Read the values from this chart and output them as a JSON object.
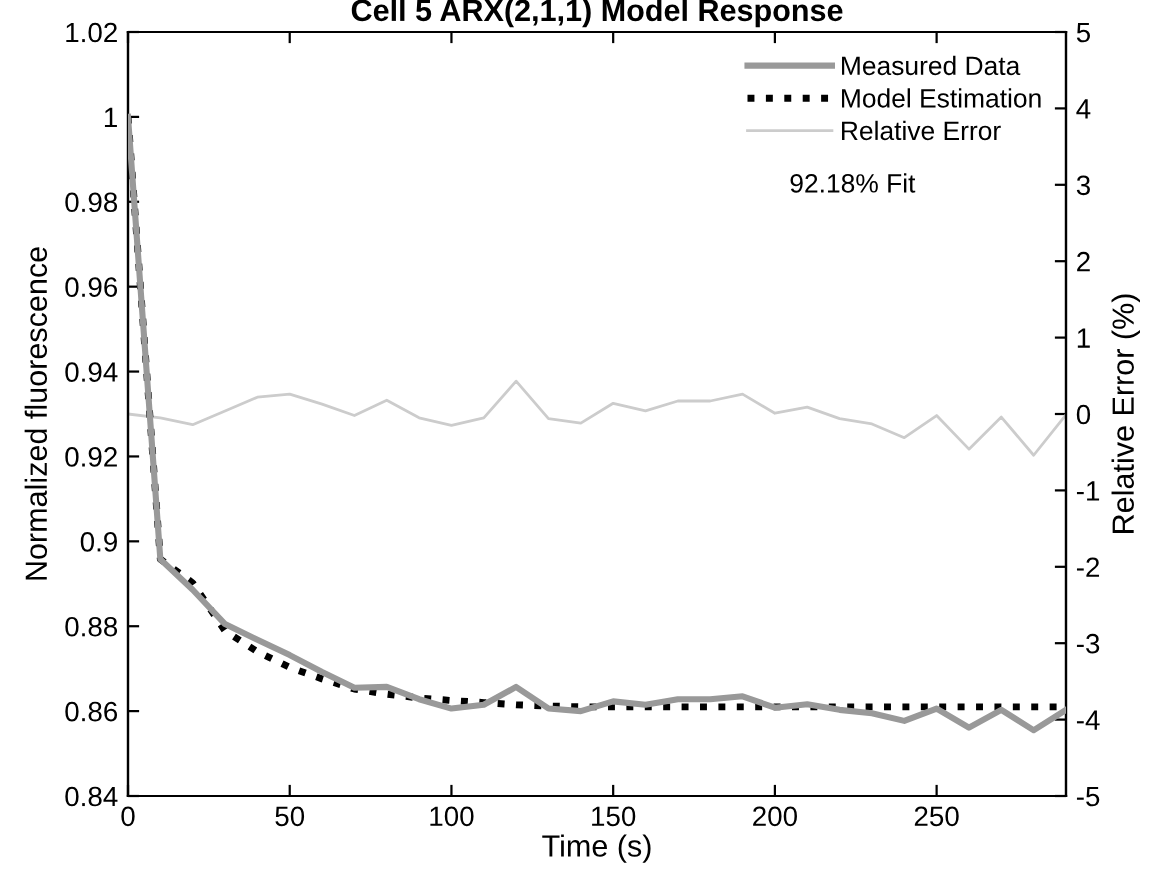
{
  "chart_data": {
    "type": "line",
    "title": "Cell 5 ARX(2,1,1) Model Response",
    "xlabel": "Time (s)",
    "ylabel": "Normalized fluorescence",
    "y2label": "Relative Error (%)",
    "x": [
      0,
      10,
      20,
      30,
      40,
      50,
      60,
      70,
      80,
      90,
      100,
      110,
      120,
      130,
      140,
      150,
      160,
      170,
      180,
      190,
      200,
      210,
      220,
      230,
      240,
      250,
      260,
      270,
      280,
      290
    ],
    "series": [
      {
        "name": "Measured Data",
        "color": "#999999",
        "line_style": "solid",
        "values": [
          1.0,
          0.8958,
          0.8886,
          0.8805,
          0.8768,
          0.8732,
          0.8692,
          0.8655,
          0.8657,
          0.8628,
          0.8606,
          0.8615,
          0.8657,
          0.8606,
          0.86,
          0.8623,
          0.8615,
          0.8628,
          0.8628,
          0.8635,
          0.8608,
          0.8616,
          0.8603,
          0.8595,
          0.8577,
          0.8606,
          0.8561,
          0.8603,
          0.8555,
          0.8603
        ]
      },
      {
        "name": "Model Estimation",
        "color": "#000000",
        "line_style": "dotted",
        "values": [
          1.0,
          0.8958,
          0.8902,
          0.8789,
          0.874,
          0.8703,
          0.8676,
          0.8652,
          0.864,
          0.8631,
          0.8625,
          0.862,
          0.8615,
          0.8612,
          0.861,
          0.861,
          0.861,
          0.861,
          0.861,
          0.861,
          0.861,
          0.861,
          0.861,
          0.861,
          0.861,
          0.861,
          0.861,
          0.861,
          0.861,
          0.861
        ]
      },
      {
        "name": "Relative Error",
        "color": "#cccccc",
        "line_style": "solid",
        "axis": "y2",
        "values": [
          0.0,
          -0.05,
          -0.14,
          0.04,
          0.22,
          0.26,
          0.13,
          -0.02,
          0.18,
          -0.05,
          -0.15,
          -0.05,
          0.43,
          -0.06,
          -0.12,
          0.14,
          0.04,
          0.17,
          0.17,
          0.26,
          0.01,
          0.09,
          -0.06,
          -0.13,
          -0.31,
          -0.02,
          -0.46,
          -0.04,
          -0.54,
          -0.01
        ]
      }
    ],
    "annotations": [
      "92.18% Fit"
    ],
    "xlim": [
      0,
      290
    ],
    "xticks": [
      0,
      50,
      100,
      150,
      200,
      250
    ],
    "ylim": [
      0.84,
      1.02
    ],
    "yticks": [
      0.84,
      0.86,
      0.88,
      0.9,
      0.92,
      0.94,
      0.96,
      0.98,
      1,
      1.02
    ],
    "y2lim": [
      -5,
      5
    ],
    "y2ticks": [
      -5,
      -4,
      -3,
      -2,
      -1,
      0,
      1,
      2,
      3,
      4,
      5
    ],
    "grid": false,
    "legend": "top right",
    "marker": "none"
  }
}
